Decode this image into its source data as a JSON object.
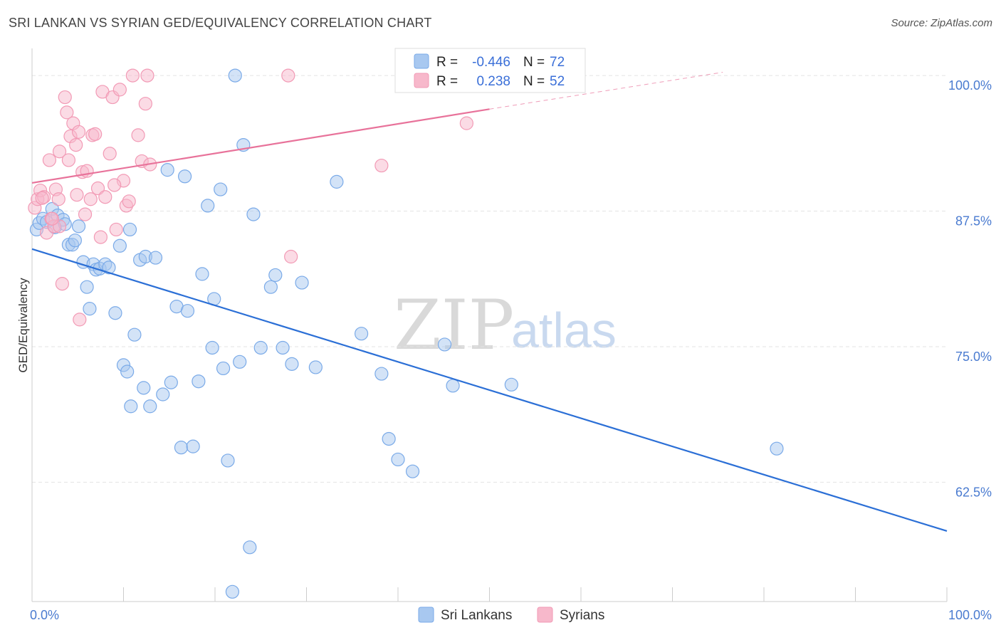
{
  "header": {
    "title": "SRI LANKAN VS SYRIAN GED/EQUIVALENCY CORRELATION CHART",
    "source": "Source: ZipAtlas.com"
  },
  "watermark": {
    "zip": "ZIP",
    "atlas": "atlas"
  },
  "legend": {
    "r_label": "R =",
    "n_label": "N =",
    "rows": [
      {
        "r": "-0.446",
        "n": "72",
        "color": "#a8c8f0"
      },
      {
        "r": "0.238",
        "n": "52",
        "color": "#f7b8cb"
      }
    ]
  },
  "bottom_legend": [
    "Sri Lankans",
    "Syrians"
  ],
  "chart_data": {
    "type": "scatter",
    "title": "SRI LANKAN VS SYRIAN GED/EQUIVALENCY CORRELATION CHART",
    "xlabel": "",
    "ylabel": "GED/Equivalency",
    "xlim": [
      0,
      100
    ],
    "ylim": [
      51.5,
      102.5
    ],
    "x_tick_labels": [
      "0.0%",
      "100.0%"
    ],
    "y_ticks": [
      {
        "value": 100.0,
        "label": "100.0%"
      },
      {
        "value": 87.5,
        "label": "87.5%"
      },
      {
        "value": 75.0,
        "label": "75.0%"
      },
      {
        "value": 62.5,
        "label": "62.5%"
      }
    ],
    "grid": true,
    "legend_position": "top-center",
    "series": [
      {
        "name": "Sri Lankans",
        "color": "#7aaae8",
        "fill": "#a8c8f0",
        "trend_color": "#2b6fd6",
        "trend": {
          "x0": 0,
          "y0": 84.0,
          "x1": 100,
          "y1": 58.0
        },
        "points": [
          [
            0.5,
            85.8
          ],
          [
            0.8,
            86.4
          ],
          [
            1.2,
            86.8
          ],
          [
            1.6,
            86.5
          ],
          [
            2.2,
            87.7
          ],
          [
            2.5,
            86.0
          ],
          [
            2.8,
            87.1
          ],
          [
            3.4,
            86.7
          ],
          [
            3.6,
            86.3
          ],
          [
            4.0,
            84.4
          ],
          [
            4.4,
            84.4
          ],
          [
            4.7,
            84.8
          ],
          [
            5.1,
            86.1
          ],
          [
            5.6,
            82.8
          ],
          [
            6.0,
            80.5
          ],
          [
            6.3,
            78.5
          ],
          [
            6.7,
            82.6
          ],
          [
            7.0,
            82.1
          ],
          [
            7.4,
            82.2
          ],
          [
            8.0,
            82.6
          ],
          [
            8.4,
            82.3
          ],
          [
            9.1,
            78.1
          ],
          [
            9.6,
            84.3
          ],
          [
            10.0,
            73.3
          ],
          [
            10.4,
            72.7
          ],
          [
            10.7,
            85.8
          ],
          [
            11.2,
            76.1
          ],
          [
            11.8,
            83.0
          ],
          [
            12.2,
            71.2
          ],
          [
            12.4,
            83.3
          ],
          [
            12.9,
            69.5
          ],
          [
            13.5,
            83.2
          ],
          [
            14.3,
            70.6
          ],
          [
            14.8,
            91.3
          ],
          [
            15.2,
            71.7
          ],
          [
            15.8,
            78.7
          ],
          [
            16.3,
            65.7
          ],
          [
            16.7,
            90.7
          ],
          [
            17.0,
            78.3
          ],
          [
            17.6,
            65.8
          ],
          [
            18.2,
            71.8
          ],
          [
            18.6,
            81.7
          ],
          [
            19.2,
            88.0
          ],
          [
            19.7,
            74.9
          ],
          [
            19.9,
            79.4
          ],
          [
            20.6,
            89.5
          ],
          [
            20.9,
            73.0
          ],
          [
            21.4,
            64.5
          ],
          [
            22.2,
            100.0
          ],
          [
            22.7,
            73.6
          ],
          [
            23.1,
            93.6
          ],
          [
            23.8,
            56.5
          ],
          [
            24.2,
            87.2
          ],
          [
            25.0,
            74.9
          ],
          [
            26.1,
            80.5
          ],
          [
            26.6,
            81.6
          ],
          [
            27.4,
            74.9
          ],
          [
            28.4,
            73.4
          ],
          [
            29.5,
            80.9
          ],
          [
            31.0,
            73.1
          ],
          [
            33.3,
            90.2
          ],
          [
            36.0,
            76.2
          ],
          [
            38.2,
            72.5
          ],
          [
            39.0,
            66.5
          ],
          [
            40.0,
            64.6
          ],
          [
            41.6,
            63.5
          ],
          [
            45.1,
            75.2
          ],
          [
            46.0,
            71.4
          ],
          [
            52.4,
            71.5
          ],
          [
            81.4,
            65.6
          ],
          [
            21.9,
            52.4
          ],
          [
            10.8,
            69.5
          ]
        ]
      },
      {
        "name": "Syrians",
        "color": "#f29ab5",
        "fill": "#f7b8cb",
        "trend_color": "#e8729a",
        "trend": {
          "x0": 0,
          "y0": 90.1,
          "x1": 50.0,
          "y1": 96.9
        },
        "trend_dashed": {
          "x0": 50.0,
          "y0": 96.9,
          "x1": 75.5,
          "y1": 100.3
        },
        "points": [
          [
            0.3,
            87.8
          ],
          [
            0.6,
            88.6
          ],
          [
            0.9,
            89.4
          ],
          [
            1.3,
            88.8
          ],
          [
            1.6,
            85.5
          ],
          [
            1.9,
            92.2
          ],
          [
            2.1,
            86.8
          ],
          [
            2.4,
            86.1
          ],
          [
            2.6,
            89.5
          ],
          [
            2.9,
            88.6
          ],
          [
            3.0,
            93.0
          ],
          [
            3.3,
            80.8
          ],
          [
            3.6,
            98.0
          ],
          [
            3.8,
            96.6
          ],
          [
            4.0,
            92.2
          ],
          [
            4.2,
            94.4
          ],
          [
            4.5,
            95.6
          ],
          [
            4.8,
            93.6
          ],
          [
            4.9,
            89.0
          ],
          [
            5.2,
            77.5
          ],
          [
            5.5,
            91.1
          ],
          [
            5.8,
            87.2
          ],
          [
            6.0,
            91.2
          ],
          [
            6.4,
            88.6
          ],
          [
            6.6,
            94.5
          ],
          [
            6.9,
            94.6
          ],
          [
            7.2,
            89.6
          ],
          [
            7.5,
            85.1
          ],
          [
            7.7,
            98.5
          ],
          [
            8.0,
            88.8
          ],
          [
            8.5,
            92.8
          ],
          [
            8.8,
            98.0
          ],
          [
            9.2,
            85.8
          ],
          [
            9.6,
            98.7
          ],
          [
            10.0,
            90.3
          ],
          [
            10.3,
            88.0
          ],
          [
            10.6,
            88.4
          ],
          [
            11.0,
            100.0
          ],
          [
            11.6,
            94.5
          ],
          [
            12.0,
            92.1
          ],
          [
            12.4,
            97.4
          ],
          [
            12.6,
            100.0
          ],
          [
            12.9,
            91.8
          ],
          [
            3.0,
            86.1
          ],
          [
            28.0,
            100.0
          ],
          [
            28.3,
            83.3
          ],
          [
            38.2,
            91.7
          ],
          [
            47.5,
            95.6
          ],
          [
            1.1,
            88.7
          ],
          [
            2.2,
            86.8
          ],
          [
            5.1,
            94.8
          ],
          [
            9.0,
            89.9
          ]
        ]
      }
    ]
  }
}
